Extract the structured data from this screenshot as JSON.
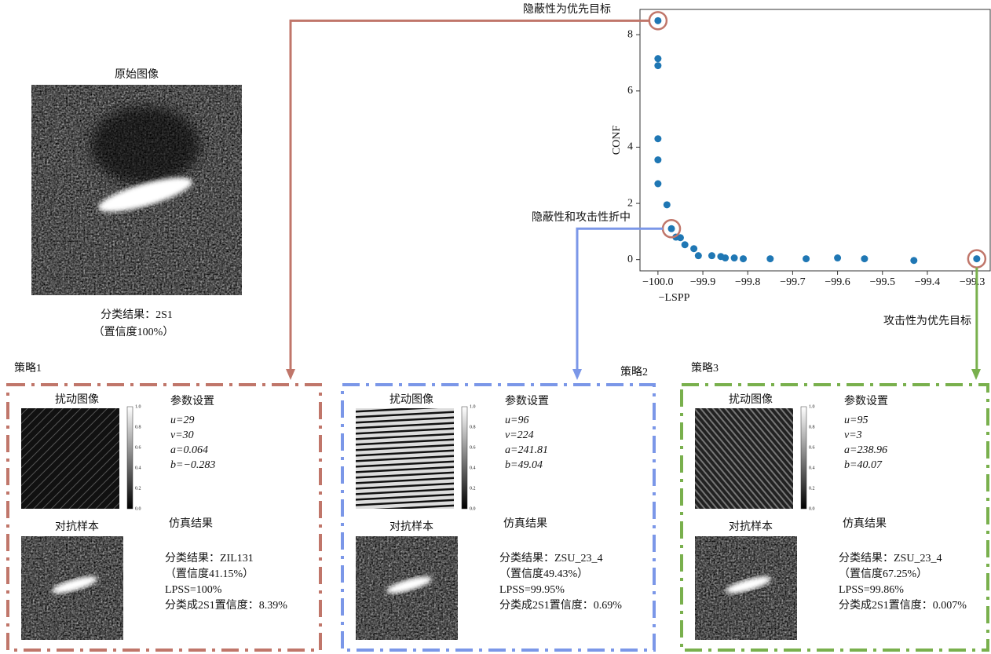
{
  "chart_data": {
    "type": "scatter",
    "xlabel": "−LSPP",
    "ylabel": "CONF",
    "x": [
      -100.0,
      -100.0,
      -100.0,
      -100.0,
      -100.0,
      -100.0,
      -99.98,
      -99.97,
      -99.96,
      -99.95,
      -99.94,
      -99.92,
      -99.91,
      -99.88,
      -99.86,
      -99.85,
      -99.83,
      -99.81,
      -99.75,
      -99.67,
      -99.6,
      -99.54,
      -99.43,
      -99.29
    ],
    "values": [
      8.5,
      7.15,
      6.9,
      4.3,
      3.55,
      2.7,
      1.95,
      1.1,
      0.8,
      0.78,
      0.53,
      0.39,
      0.14,
      0.14,
      0.11,
      0.06,
      0.06,
      0.03,
      0.03,
      0.03,
      0.06,
      0.03,
      -0.03,
      0.03
    ],
    "color": "#1f77b4",
    "xlim": [
      -100.04,
      -99.26
    ],
    "ylim": [
      -0.4,
      8.9
    ],
    "xticks": [
      {
        "value": -100.0,
        "label": "−100.0"
      },
      {
        "value": -99.9,
        "label": "−99.9"
      },
      {
        "value": -99.8,
        "label": "−99.8"
      },
      {
        "value": -99.7,
        "label": "−99.7"
      },
      {
        "value": -99.6,
        "label": "−99.6"
      },
      {
        "value": -99.5,
        "label": "−99.5"
      },
      {
        "value": -99.4,
        "label": "−99.4"
      },
      {
        "value": -99.3,
        "label": "−99.3"
      }
    ],
    "yticks": [
      0,
      2,
      4,
      6,
      8
    ],
    "annotations": [
      {
        "text": "隐蔽性为优先目标",
        "point": 0
      },
      {
        "text": "隐蔽性和攻击性折中",
        "point": 7
      },
      {
        "text": "攻击性为优先目标",
        "point": 23
      }
    ]
  },
  "original": {
    "title": "原始图像",
    "result": "分类结果：2S1",
    "confidence": "（置信度100%）"
  },
  "colorbar_ticks": [
    "0.0",
    "0.2",
    "0.4",
    "0.6",
    "0.8",
    "1.0"
  ],
  "strategies": [
    {
      "name": "策略1",
      "color": "#c0766a",
      "perturb_title": "扰动图像",
      "params_title": "参数设置",
      "params": [
        "u=29",
        "v=30",
        "a=0.064",
        "b=−0.283"
      ],
      "adv_title": "对抗样本",
      "result_title": "仿真结果",
      "results": [
        "分类结果：ZIL131",
        "（置信度41.15%）",
        "LPSS=100%",
        "分类成2S1置信度：8.39%"
      ]
    },
    {
      "name": "策略2",
      "color": "#7b97e8",
      "perturb_title": "扰动图像",
      "params_title": "参数设置",
      "params": [
        "u=96",
        "v=224",
        "a=241.81",
        "b=49.04"
      ],
      "adv_title": "对抗样本",
      "result_title": "仿真结果",
      "results": [
        "分类结果：ZSU_23_4",
        "（置信度49.43%）",
        "LPSS=99.95%",
        "分类成2S1置信度：0.69%"
      ]
    },
    {
      "name": "策略3",
      "color": "#79b04d",
      "perturb_title": "扰动图像",
      "params_title": "参数设置",
      "params": [
        "u=95",
        "v=3",
        "a=238.96",
        "b=40.07"
      ],
      "adv_title": "对抗样本",
      "result_title": "仿真结果",
      "results": [
        "分类结果：ZSU_23_4",
        "（置信度67.25%）",
        "LPSS=99.86%",
        "分类成2S1置信度：0.007%"
      ]
    }
  ]
}
